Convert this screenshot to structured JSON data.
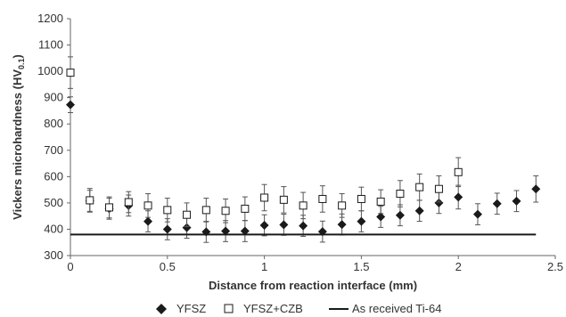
{
  "chart_data": {
    "type": "scatter",
    "xlabel": "Distance from reaction interface (mm)",
    "ylabel": "Vickers microhardness (HV",
    "ylabel_sub": "0.1",
    "ylabel_suffix": ")",
    "xlim": [
      0,
      2.5
    ],
    "ylim": [
      300,
      1200
    ],
    "x_ticks": [
      0,
      0.5,
      1,
      1.5,
      2,
      2.5
    ],
    "x_tick_labels": [
      "0",
      "0.5",
      "1",
      "1.5",
      "2",
      "2.5"
    ],
    "y_ticks": [
      300,
      400,
      500,
      600,
      700,
      800,
      900,
      1000,
      1100,
      1200
    ],
    "y_tick_labels": [
      "300",
      "400",
      "500",
      "600",
      "700",
      "800",
      "900",
      "1000",
      "1100",
      "1200"
    ],
    "grid": false,
    "legend_position": "bottom",
    "series": [
      {
        "name": "YFSZ",
        "marker": "filled-diamond",
        "color": "#1a1a1a",
        "points": [
          {
            "x": 0,
            "y": 873,
            "err": 30
          },
          {
            "x": 0.1,
            "y": 508,
            "err": 40
          },
          {
            "x": 0.2,
            "y": 478,
            "err": 40
          },
          {
            "x": 0.3,
            "y": 490,
            "err": 40
          },
          {
            "x": 0.4,
            "y": 430,
            "err": 40
          },
          {
            "x": 0.5,
            "y": 400,
            "err": 40
          },
          {
            "x": 0.6,
            "y": 406,
            "err": 40
          },
          {
            "x": 0.7,
            "y": 390,
            "err": 40
          },
          {
            "x": 0.8,
            "y": 393,
            "err": 40
          },
          {
            "x": 0.9,
            "y": 393,
            "err": 40
          },
          {
            "x": 1.0,
            "y": 415,
            "err": 40
          },
          {
            "x": 1.1,
            "y": 417,
            "err": 40
          },
          {
            "x": 1.2,
            "y": 413,
            "err": 40
          },
          {
            "x": 1.3,
            "y": 391,
            "err": 40
          },
          {
            "x": 1.4,
            "y": 418,
            "err": 40
          },
          {
            "x": 1.5,
            "y": 430,
            "err": 40
          },
          {
            "x": 1.6,
            "y": 447,
            "err": 40
          },
          {
            "x": 1.7,
            "y": 453,
            "err": 40
          },
          {
            "x": 1.8,
            "y": 470,
            "err": 40
          },
          {
            "x": 1.9,
            "y": 500,
            "err": 40
          },
          {
            "x": 2.0,
            "y": 522,
            "err": 45
          },
          {
            "x": 2.1,
            "y": 457,
            "err": 40
          },
          {
            "x": 2.2,
            "y": 497,
            "err": 40
          },
          {
            "x": 2.3,
            "y": 507,
            "err": 40
          },
          {
            "x": 2.4,
            "y": 553,
            "err": 50
          }
        ]
      },
      {
        "name": "YFSZ+CZB",
        "marker": "open-square",
        "color": "#1a1a1a",
        "points": [
          {
            "x": 0,
            "y": 995,
            "err": 60
          },
          {
            "x": 0.1,
            "y": 510,
            "err": 45
          },
          {
            "x": 0.2,
            "y": 483,
            "err": 40
          },
          {
            "x": 0.3,
            "y": 503,
            "err": 40
          },
          {
            "x": 0.4,
            "y": 490,
            "err": 45
          },
          {
            "x": 0.5,
            "y": 473,
            "err": 45
          },
          {
            "x": 0.6,
            "y": 455,
            "err": 45
          },
          {
            "x": 0.7,
            "y": 473,
            "err": 45
          },
          {
            "x": 0.8,
            "y": 470,
            "err": 45
          },
          {
            "x": 0.9,
            "y": 478,
            "err": 45
          },
          {
            "x": 1.0,
            "y": 520,
            "err": 50
          },
          {
            "x": 1.1,
            "y": 512,
            "err": 50
          },
          {
            "x": 1.2,
            "y": 490,
            "err": 50
          },
          {
            "x": 1.3,
            "y": 515,
            "err": 50
          },
          {
            "x": 1.4,
            "y": 490,
            "err": 45
          },
          {
            "x": 1.5,
            "y": 515,
            "err": 45
          },
          {
            "x": 1.6,
            "y": 505,
            "err": 45
          },
          {
            "x": 1.7,
            "y": 535,
            "err": 50
          },
          {
            "x": 1.8,
            "y": 560,
            "err": 50
          },
          {
            "x": 1.9,
            "y": 553,
            "err": 50
          },
          {
            "x": 2.0,
            "y": 617,
            "err": 55
          }
        ]
      },
      {
        "name": "As received Ti-64",
        "marker": "line",
        "color": "#1a1a1a",
        "points": [
          {
            "x": 0,
            "y": 380
          },
          {
            "x": 2.4,
            "y": 380
          }
        ]
      }
    ]
  }
}
